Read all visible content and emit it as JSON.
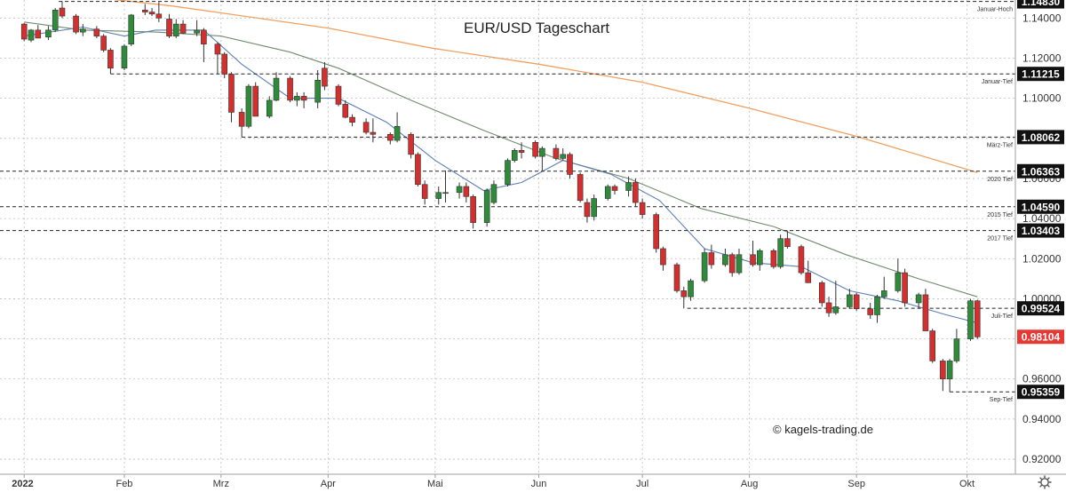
{
  "chart_data": {
    "type": "candlestick",
    "title": "EUR/USD Tageschart",
    "watermark": "© kagels-trading.de",
    "ylim": [
      0.9125,
      1.149
    ],
    "grid": true,
    "y_ticks": [
      "1.14000",
      "1.12000",
      "1.10000",
      "1.08000",
      "1.06000",
      "1.04000",
      "1.02000",
      "1.00000",
      "0.98000",
      "0.96000",
      "0.94000",
      "0.92000"
    ],
    "x_ticks": [
      {
        "label": "2022",
        "x": "2022-01-03"
      },
      {
        "label": "Feb",
        "x": "2022-02-01"
      },
      {
        "label": "Mrz",
        "x": "2022-03-01"
      },
      {
        "label": "Apr",
        "x": "2022-04-01"
      },
      {
        "label": "Mai",
        "x": "2022-05-02"
      },
      {
        "label": "Jun",
        "x": "2022-06-01"
      },
      {
        "label": "Jul",
        "x": "2022-07-01"
      },
      {
        "label": "Aug",
        "x": "2022-08-01"
      },
      {
        "label": "Sep",
        "x": "2022-09-01"
      },
      {
        "label": "Okt",
        "x": "2022-10-03"
      }
    ],
    "x_range": [
      "2021-12-27",
      "2022-10-17"
    ],
    "levels": [
      {
        "name": "Januar-Hoch",
        "value": "1.14830",
        "start": "2022-01-13"
      },
      {
        "name": "Januar-Tief",
        "value": "1.11215",
        "start": "2022-01-28"
      },
      {
        "name": "März-Tief",
        "value": "1.08062",
        "start": "2022-03-07"
      },
      {
        "name": "2020 Tief",
        "value": "1.06363",
        "start": "2021-12-27"
      },
      {
        "name": "2015 Tief",
        "value": "1.04590",
        "start": "2021-12-27"
      },
      {
        "name": "2017 Tief",
        "value": "1.03403",
        "start": "2021-12-27"
      },
      {
        "name": "Juli-Tief",
        "value": "0.99524",
        "start": "2022-07-14"
      },
      {
        "name": "Sep-Tief",
        "value": "0.95359",
        "start": "2022-09-28"
      }
    ],
    "current_price": "0.98104",
    "colors": {
      "up": "#2e8b3a",
      "down": "#d32f2f",
      "sma_fast": "#5b7fb5",
      "sma_slow": "#6f8b6f",
      "sma_200": "#f0a060",
      "grid": "#bdbdbd",
      "badge": "#111111",
      "current": "#e53935"
    },
    "ohlc": [
      {
        "d": "2022-01-03",
        "o": 1.137,
        "h": 1.1375,
        "l": 1.1285,
        "c": 1.1295
      },
      {
        "d": "2022-01-05",
        "o": 1.129,
        "h": 1.1345,
        "l": 1.128,
        "c": 1.134
      },
      {
        "d": "2022-01-07",
        "o": 1.134,
        "h": 1.1365,
        "l": 1.13,
        "c": 1.13
      },
      {
        "d": "2022-01-10",
        "o": 1.1305,
        "h": 1.136,
        "l": 1.129,
        "c": 1.134
      },
      {
        "d": "2022-01-12",
        "o": 1.134,
        "h": 1.145,
        "l": 1.133,
        "c": 1.144
      },
      {
        "d": "2022-01-14",
        "o": 1.145,
        "h": 1.1483,
        "l": 1.14,
        "c": 1.141
      },
      {
        "d": "2022-01-18",
        "o": 1.141,
        "h": 1.142,
        "l": 1.132,
        "c": 1.133
      },
      {
        "d": "2022-01-20",
        "o": 1.133,
        "h": 1.137,
        "l": 1.131,
        "c": 1.1345
      },
      {
        "d": "2022-01-24",
        "o": 1.1345,
        "h": 1.136,
        "l": 1.13,
        "c": 1.131
      },
      {
        "d": "2022-01-26",
        "o": 1.131,
        "h": 1.132,
        "l": 1.123,
        "c": 1.124
      },
      {
        "d": "2022-01-28",
        "o": 1.124,
        "h": 1.125,
        "l": 1.1122,
        "c": 1.115
      },
      {
        "d": "2022-02-01",
        "o": 1.115,
        "h": 1.127,
        "l": 1.114,
        "c": 1.126
      },
      {
        "d": "2022-02-03",
        "o": 1.127,
        "h": 1.142,
        "l": 1.126,
        "c": 1.1415
      },
      {
        "d": "2022-02-07",
        "o": 1.144,
        "h": 1.147,
        "l": 1.1415,
        "c": 1.143
      },
      {
        "d": "2022-02-09",
        "o": 1.143,
        "h": 1.145,
        "l": 1.141,
        "c": 1.142
      },
      {
        "d": "2022-02-11",
        "o": 1.142,
        "h": 1.148,
        "l": 1.138,
        "c": 1.14
      },
      {
        "d": "2022-02-14",
        "o": 1.1395,
        "h": 1.142,
        "l": 1.13,
        "c": 1.131
      },
      {
        "d": "2022-02-16",
        "o": 1.131,
        "h": 1.1395,
        "l": 1.13,
        "c": 1.137
      },
      {
        "d": "2022-02-18",
        "o": 1.137,
        "h": 1.139,
        "l": 1.132,
        "c": 1.1325
      },
      {
        "d": "2022-02-22",
        "o": 1.1325,
        "h": 1.139,
        "l": 1.131,
        "c": 1.134
      },
      {
        "d": "2022-02-24",
        "o": 1.134,
        "h": 1.135,
        "l": 1.118,
        "c": 1.127
      },
      {
        "d": "2022-02-28",
        "o": 1.127,
        "h": 1.128,
        "l": 1.112,
        "c": 1.122
      },
      {
        "d": "2022-03-02",
        "o": 1.122,
        "h": 1.123,
        "l": 1.11,
        "c": 1.112
      },
      {
        "d": "2022-03-04",
        "o": 1.112,
        "h": 1.113,
        "l": 1.088,
        "c": 1.093
      },
      {
        "d": "2022-03-07",
        "o": 1.093,
        "h": 1.095,
        "l": 1.0806,
        "c": 1.086
      },
      {
        "d": "2022-03-09",
        "o": 1.086,
        "h": 1.107,
        "l": 1.085,
        "c": 1.106
      },
      {
        "d": "2022-03-11",
        "o": 1.106,
        "h": 1.108,
        "l": 1.091,
        "c": 1.091
      },
      {
        "d": "2022-03-15",
        "o": 1.091,
        "h": 1.101,
        "l": 1.09,
        "c": 1.099
      },
      {
        "d": "2022-03-17",
        "o": 1.099,
        "h": 1.113,
        "l": 1.0985,
        "c": 1.11
      },
      {
        "d": "2022-03-21",
        "o": 1.11,
        "h": 1.111,
        "l": 1.098,
        "c": 1.099
      },
      {
        "d": "2022-03-23",
        "o": 1.099,
        "h": 1.103,
        "l": 1.096,
        "c": 1.101
      },
      {
        "d": "2022-03-25",
        "o": 1.101,
        "h": 1.103,
        "l": 1.095,
        "c": 1.099
      },
      {
        "d": "2022-03-29",
        "o": 1.098,
        "h": 1.114,
        "l": 1.095,
        "c": 1.109
      },
      {
        "d": "2022-03-31",
        "o": 1.115,
        "h": 1.118,
        "l": 1.104,
        "c": 1.106
      },
      {
        "d": "2022-04-04",
        "o": 1.106,
        "h": 1.107,
        "l": 1.096,
        "c": 1.097
      },
      {
        "d": "2022-04-06",
        "o": 1.097,
        "h": 1.099,
        "l": 1.09,
        "c": 1.0905
      },
      {
        "d": "2022-04-08",
        "o": 1.0905,
        "h": 1.092,
        "l": 1.086,
        "c": 1.088
      },
      {
        "d": "2022-04-12",
        "o": 1.088,
        "h": 1.09,
        "l": 1.082,
        "c": 1.083
      },
      {
        "d": "2022-04-14",
        "o": 1.083,
        "h": 1.09,
        "l": 1.078,
        "c": 1.082
      },
      {
        "d": "2022-04-19",
        "o": 1.082,
        "h": 1.083,
        "l": 1.077,
        "c": 1.079
      },
      {
        "d": "2022-04-21",
        "o": 1.079,
        "h": 1.093,
        "l": 1.078,
        "c": 1.086
      },
      {
        "d": "2022-04-25",
        "o": 1.082,
        "h": 1.083,
        "l": 1.07,
        "c": 1.072
      },
      {
        "d": "2022-04-27",
        "o": 1.072,
        "h": 1.073,
        "l": 1.056,
        "c": 1.057
      },
      {
        "d": "2022-04-29",
        "o": 1.057,
        "h": 1.059,
        "l": 1.047,
        "c": 1.05
      },
      {
        "d": "2022-05-03",
        "o": 1.05,
        "h": 1.056,
        "l": 1.047,
        "c": 1.053
      },
      {
        "d": "2022-05-05",
        "o": 1.053,
        "h": 1.064,
        "l": 1.048,
        "c": 1.053
      },
      {
        "d": "2022-05-09",
        "o": 1.053,
        "h": 1.058,
        "l": 1.05,
        "c": 1.056
      },
      {
        "d": "2022-05-11",
        "o": 1.056,
        "h": 1.058,
        "l": 1.048,
        "c": 1.051
      },
      {
        "d": "2022-05-13",
        "o": 1.051,
        "h": 1.052,
        "l": 1.035,
        "c": 1.038
      },
      {
        "d": "2022-05-17",
        "o": 1.038,
        "h": 1.055,
        "l": 1.036,
        "c": 1.054
      },
      {
        "d": "2022-05-19",
        "o": 1.048,
        "h": 1.059,
        "l": 1.047,
        "c": 1.057
      },
      {
        "d": "2022-05-23",
        "o": 1.057,
        "h": 1.07,
        "l": 1.056,
        "c": 1.069
      },
      {
        "d": "2022-05-25",
        "o": 1.069,
        "h": 1.075,
        "l": 1.068,
        "c": 1.074
      },
      {
        "d": "2022-05-27",
        "o": 1.074,
        "h": 1.078,
        "l": 1.07,
        "c": 1.073
      },
      {
        "d": "2022-05-31",
        "o": 1.078,
        "h": 1.079,
        "l": 1.07,
        "c": 1.071
      },
      {
        "d": "2022-06-02",
        "o": 1.071,
        "h": 1.076,
        "l": 1.064,
        "c": 1.075
      },
      {
        "d": "2022-06-06",
        "o": 1.075,
        "h": 1.077,
        "l": 1.069,
        "c": 1.07
      },
      {
        "d": "2022-06-08",
        "o": 1.07,
        "h": 1.075,
        "l": 1.069,
        "c": 1.072
      },
      {
        "d": "2022-06-10",
        "o": 1.072,
        "h": 1.073,
        "l": 1.06,
        "c": 1.062
      },
      {
        "d": "2022-06-13",
        "o": 1.062,
        "h": 1.063,
        "l": 1.048,
        "c": 1.049
      },
      {
        "d": "2022-06-15",
        "o": 1.048,
        "h": 1.05,
        "l": 1.038,
        "c": 1.041
      },
      {
        "d": "2022-06-17",
        "o": 1.041,
        "h": 1.052,
        "l": 1.039,
        "c": 1.05
      },
      {
        "d": "2022-06-21",
        "o": 1.05,
        "h": 1.057,
        "l": 1.049,
        "c": 1.056
      },
      {
        "d": "2022-06-23",
        "o": 1.056,
        "h": 1.057,
        "l": 1.052,
        "c": 1.054
      },
      {
        "d": "2022-06-27",
        "o": 1.054,
        "h": 1.061,
        "l": 1.051,
        "c": 1.058
      },
      {
        "d": "2022-06-29",
        "o": 1.058,
        "h": 1.06,
        "l": 1.046,
        "c": 1.048
      },
      {
        "d": "2022-07-01",
        "o": 1.048,
        "h": 1.05,
        "l": 1.04,
        "c": 1.042
      },
      {
        "d": "2022-07-05",
        "o": 1.042,
        "h": 1.043,
        "l": 1.023,
        "c": 1.025
      },
      {
        "d": "2022-07-07",
        "o": 1.025,
        "h": 1.026,
        "l": 1.014,
        "c": 1.017
      },
      {
        "d": "2022-07-11",
        "o": 1.017,
        "h": 1.018,
        "l": 1.003,
        "c": 1.004
      },
      {
        "d": "2022-07-13",
        "o": 1.004,
        "h": 1.006,
        "l": 0.9952,
        "c": 1.001
      },
      {
        "d": "2022-07-15",
        "o": 1.001,
        "h": 1.01,
        "l": 0.999,
        "c": 1.009
      },
      {
        "d": "2022-07-19",
        "o": 1.009,
        "h": 1.025,
        "l": 1.008,
        "c": 1.023
      },
      {
        "d": "2022-07-21",
        "o": 1.023,
        "h": 1.027,
        "l": 1.015,
        "c": 1.017
      },
      {
        "d": "2022-07-25",
        "o": 1.017,
        "h": 1.025,
        "l": 1.016,
        "c": 1.022
      },
      {
        "d": "2022-07-27",
        "o": 1.022,
        "h": 1.023,
        "l": 1.011,
        "c": 1.013
      },
      {
        "d": "2022-07-29",
        "o": 1.013,
        "h": 1.025,
        "l": 1.012,
        "c": 1.022
      },
      {
        "d": "2022-08-02",
        "o": 1.022,
        "h": 1.029,
        "l": 1.016,
        "c": 1.017
      },
      {
        "d": "2022-08-04",
        "o": 1.017,
        "h": 1.025,
        "l": 1.014,
        "c": 1.024
      },
      {
        "d": "2022-08-08",
        "o": 1.024,
        "h": 1.025,
        "l": 1.015,
        "c": 1.016
      },
      {
        "d": "2022-08-10",
        "o": 1.016,
        "h": 1.032,
        "l": 1.015,
        "c": 1.03
      },
      {
        "d": "2022-08-12",
        "o": 1.03,
        "h": 1.034,
        "l": 1.025,
        "c": 1.026
      },
      {
        "d": "2022-08-16",
        "o": 1.026,
        "h": 1.027,
        "l": 1.012,
        "c": 1.013
      },
      {
        "d": "2022-08-18",
        "o": 1.013,
        "h": 1.019,
        "l": 1.008,
        "c": 1.008
      },
      {
        "d": "2022-08-22",
        "o": 1.008,
        "h": 1.009,
        "l": 0.996,
        "c": 0.998
      },
      {
        "d": "2022-08-24",
        "o": 0.998,
        "h": 1.001,
        "l": 0.991,
        "c": 0.993
      },
      {
        "d": "2022-08-26",
        "o": 0.993,
        "h": 1.009,
        "l": 0.992,
        "c": 0.996
      },
      {
        "d": "2022-08-30",
        "o": 0.996,
        "h": 1.005,
        "l": 0.995,
        "c": 1.002
      },
      {
        "d": "2022-09-01",
        "o": 1.002,
        "h": 1.003,
        "l": 0.994,
        "c": 0.995
      },
      {
        "d": "2022-09-05",
        "o": 0.995,
        "h": 0.998,
        "l": 0.99,
        "c": 0.992
      },
      {
        "d": "2022-09-07",
        "o": 0.992,
        "h": 1.002,
        "l": 0.988,
        "c": 1.001
      },
      {
        "d": "2022-09-09",
        "o": 1.001,
        "h": 1.011,
        "l": 1.0,
        "c": 1.004
      },
      {
        "d": "2022-09-13",
        "o": 1.004,
        "h": 1.02,
        "l": 1.003,
        "c": 1.013
      },
      {
        "d": "2022-09-15",
        "o": 1.013,
        "h": 1.015,
        "l": 0.996,
        "c": 0.998
      },
      {
        "d": "2022-09-19",
        "o": 0.998,
        "h": 1.003,
        "l": 0.995,
        "c": 1.002
      },
      {
        "d": "2022-09-21",
        "o": 1.002,
        "h": 1.005,
        "l": 0.984,
        "c": 0.984
      },
      {
        "d": "2022-09-23",
        "o": 0.984,
        "h": 0.985,
        "l": 0.968,
        "c": 0.969
      },
      {
        "d": "2022-09-26",
        "o": 0.969,
        "h": 0.97,
        "l": 0.954,
        "c": 0.96
      },
      {
        "d": "2022-09-28",
        "o": 0.96,
        "h": 0.97,
        "l": 0.9536,
        "c": 0.969
      },
      {
        "d": "2022-09-30",
        "o": 0.969,
        "h": 0.985,
        "l": 0.968,
        "c": 0.98
      },
      {
        "d": "2022-10-04",
        "o": 0.98,
        "h": 1.0,
        "l": 0.979,
        "c": 0.999
      },
      {
        "d": "2022-10-06",
        "o": 0.999,
        "h": 0.9995,
        "l": 0.98,
        "c": 0.981
      }
    ],
    "sma_fast": [
      [
        "2022-01-03",
        1.131
      ],
      [
        "2022-01-20",
        1.1355
      ],
      [
        "2022-02-01",
        1.131
      ],
      [
        "2022-02-10",
        1.134
      ],
      [
        "2022-02-24",
        1.134
      ],
      [
        "2022-03-07",
        1.117
      ],
      [
        "2022-03-21",
        1.1
      ],
      [
        "2022-04-04",
        1.1
      ],
      [
        "2022-04-18",
        1.088
      ],
      [
        "2022-05-02",
        1.069
      ],
      [
        "2022-05-16",
        1.054
      ],
      [
        "2022-05-27",
        1.058
      ],
      [
        "2022-06-08",
        1.069
      ],
      [
        "2022-06-22",
        1.062
      ],
      [
        "2022-07-06",
        1.049
      ],
      [
        "2022-07-19",
        1.025
      ],
      [
        "2022-08-02",
        1.018
      ],
      [
        "2022-08-16",
        1.016
      ],
      [
        "2022-08-30",
        1.004
      ],
      [
        "2022-09-13",
        0.999
      ],
      [
        "2022-09-27",
        0.992
      ],
      [
        "2022-10-06",
        0.988
      ]
    ],
    "sma_slow": [
      [
        "2022-01-03",
        1.138
      ],
      [
        "2022-01-20",
        1.134
      ],
      [
        "2022-02-10",
        1.133
      ],
      [
        "2022-03-01",
        1.131
      ],
      [
        "2022-03-21",
        1.123
      ],
      [
        "2022-04-04",
        1.115
      ],
      [
        "2022-04-25",
        1.099
      ],
      [
        "2022-05-16",
        1.084
      ],
      [
        "2022-06-06",
        1.07
      ],
      [
        "2022-06-27",
        1.06
      ],
      [
        "2022-07-18",
        1.045
      ],
      [
        "2022-08-08",
        1.036
      ],
      [
        "2022-08-29",
        1.022
      ],
      [
        "2022-09-19",
        1.01
      ],
      [
        "2022-10-06",
        1.001
      ]
    ],
    "sma_200": [
      [
        "2022-01-25",
        1.15
      ],
      [
        "2022-02-15",
        1.146
      ],
      [
        "2022-04-01",
        1.135
      ],
      [
        "2022-05-01",
        1.125
      ],
      [
        "2022-06-01",
        1.117
      ],
      [
        "2022-07-01",
        1.108
      ],
      [
        "2022-08-01",
        1.095
      ],
      [
        "2022-09-01",
        1.081
      ],
      [
        "2022-10-06",
        1.063
      ]
    ]
  }
}
